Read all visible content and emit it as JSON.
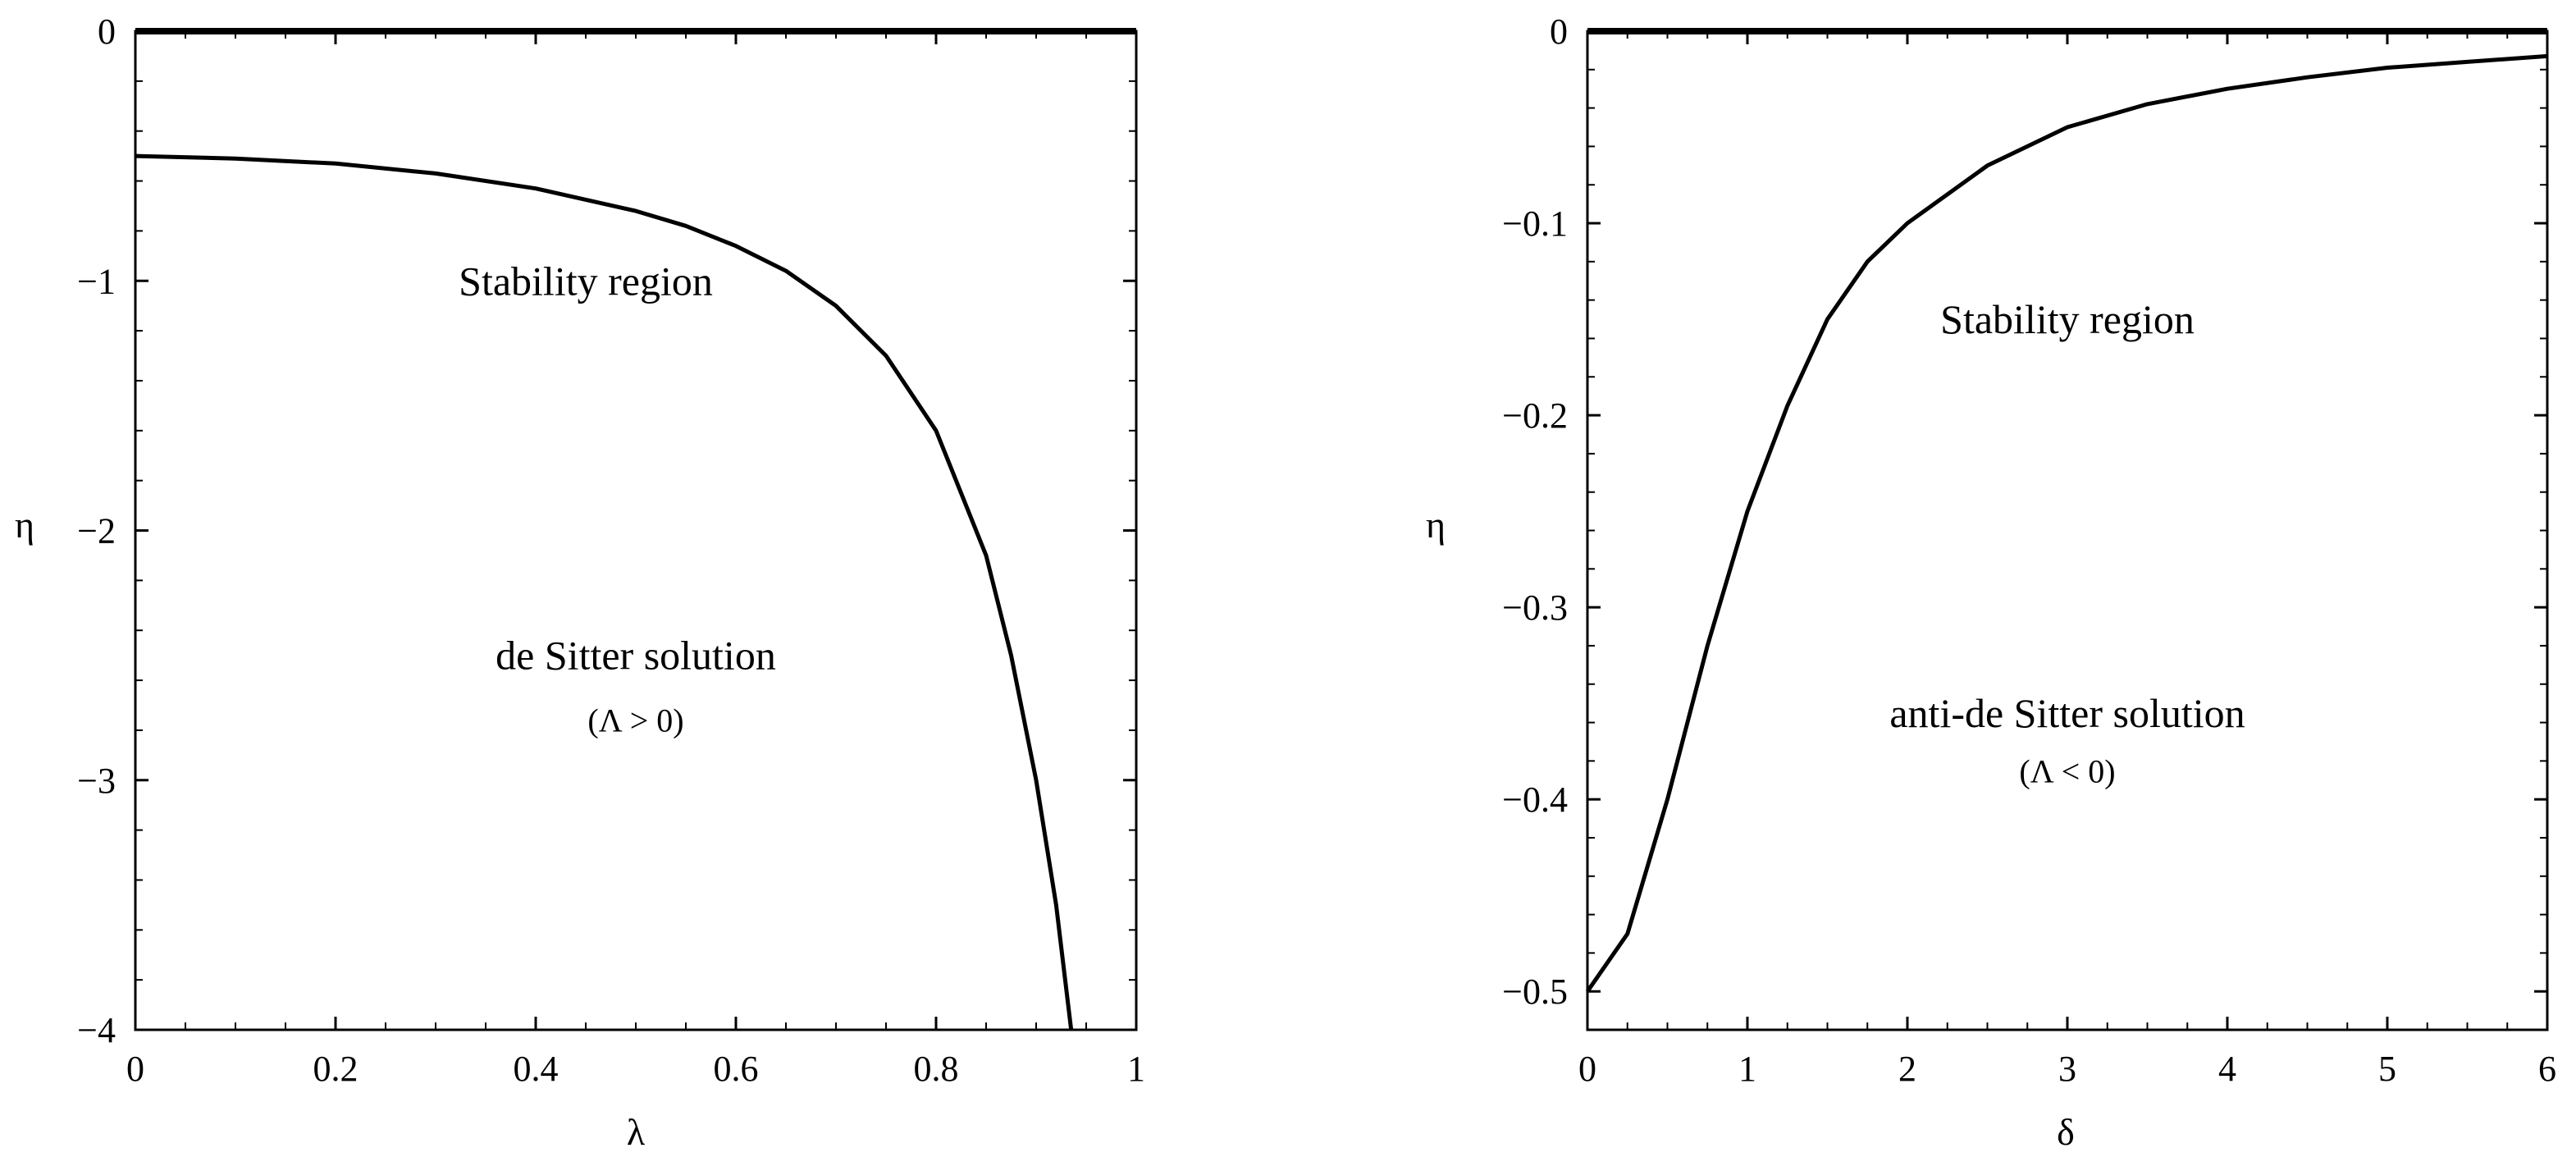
{
  "chart_data": [
    {
      "type": "line",
      "xlabel": "λ",
      "ylabel": "η",
      "xlim": [
        0,
        1
      ],
      "ylim": [
        -4,
        0
      ],
      "x_ticks": [
        0,
        0.2,
        0.4,
        0.6,
        0.8,
        1
      ],
      "x_tick_labels": [
        "0",
        "0.2",
        "0.4",
        "0.6",
        "0.8",
        "1"
      ],
      "y_ticks": [
        0,
        -1,
        -2,
        -3,
        -4
      ],
      "y_tick_labels": [
        "0",
        "−1",
        "−2",
        "−3",
        "−4"
      ],
      "grid": false,
      "series": [
        {
          "x": [
            0,
            1
          ],
          "y": [
            0,
            0
          ]
        },
        {
          "x": [
            0,
            0.1,
            0.2,
            0.3,
            0.4,
            0.5,
            0.55,
            0.6,
            0.65,
            0.7,
            0.75,
            0.8,
            0.85,
            0.875,
            0.9,
            0.92,
            0.935
          ],
          "y": [
            -0.5,
            -0.51,
            -0.53,
            -0.57,
            -0.63,
            -0.72,
            -0.78,
            -0.86,
            -0.96,
            -1.1,
            -1.3,
            -1.6,
            -2.1,
            -2.5,
            -3.0,
            -3.5,
            -4.0
          ]
        }
      ],
      "annotations": [
        {
          "text": "Stability region",
          "x": 0.45,
          "y": -1.0
        },
        {
          "text": "de Sitter solution",
          "x": 0.5,
          "y": -2.5
        },
        {
          "text": "(Λ > 0)",
          "x": 0.5,
          "y": -2.75,
          "small": true
        }
      ]
    },
    {
      "type": "line",
      "xlabel": "δ",
      "ylabel": "η",
      "xlim": [
        0,
        6
      ],
      "ylim": [
        -0.52,
        0
      ],
      "x_ticks": [
        0,
        1,
        2,
        3,
        4,
        5,
        6
      ],
      "x_tick_labels": [
        "0",
        "1",
        "2",
        "3",
        "4",
        "5",
        "6"
      ],
      "y_ticks": [
        0,
        -0.1,
        -0.2,
        -0.3,
        -0.4,
        -0.5
      ],
      "y_tick_labels": [
        "0",
        "−0.1",
        "−0.2",
        "−0.3",
        "−0.4",
        "−0.5"
      ],
      "grid": false,
      "series": [
        {
          "x": [
            0,
            6
          ],
          "y": [
            0,
            0
          ]
        },
        {
          "x": [
            0,
            0.25,
            0.5,
            0.75,
            1,
            1.25,
            1.5,
            1.75,
            2,
            2.5,
            3,
            3.5,
            4,
            4.5,
            5,
            5.5,
            6
          ],
          "y": [
            -0.5,
            -0.47,
            -0.4,
            -0.32,
            -0.25,
            -0.195,
            -0.15,
            -0.12,
            -0.1,
            -0.07,
            -0.05,
            -0.038,
            -0.03,
            -0.024,
            -0.019,
            -0.016,
            -0.013
          ]
        }
      ],
      "annotations": [
        {
          "text": "Stability region",
          "x": 3.0,
          "y": -0.15
        },
        {
          "text": "anti-de Sitter solution",
          "x": 3.0,
          "y": -0.355
        },
        {
          "text": "(Λ < 0)",
          "x": 3.0,
          "y": -0.384,
          "small": true
        }
      ]
    }
  ]
}
